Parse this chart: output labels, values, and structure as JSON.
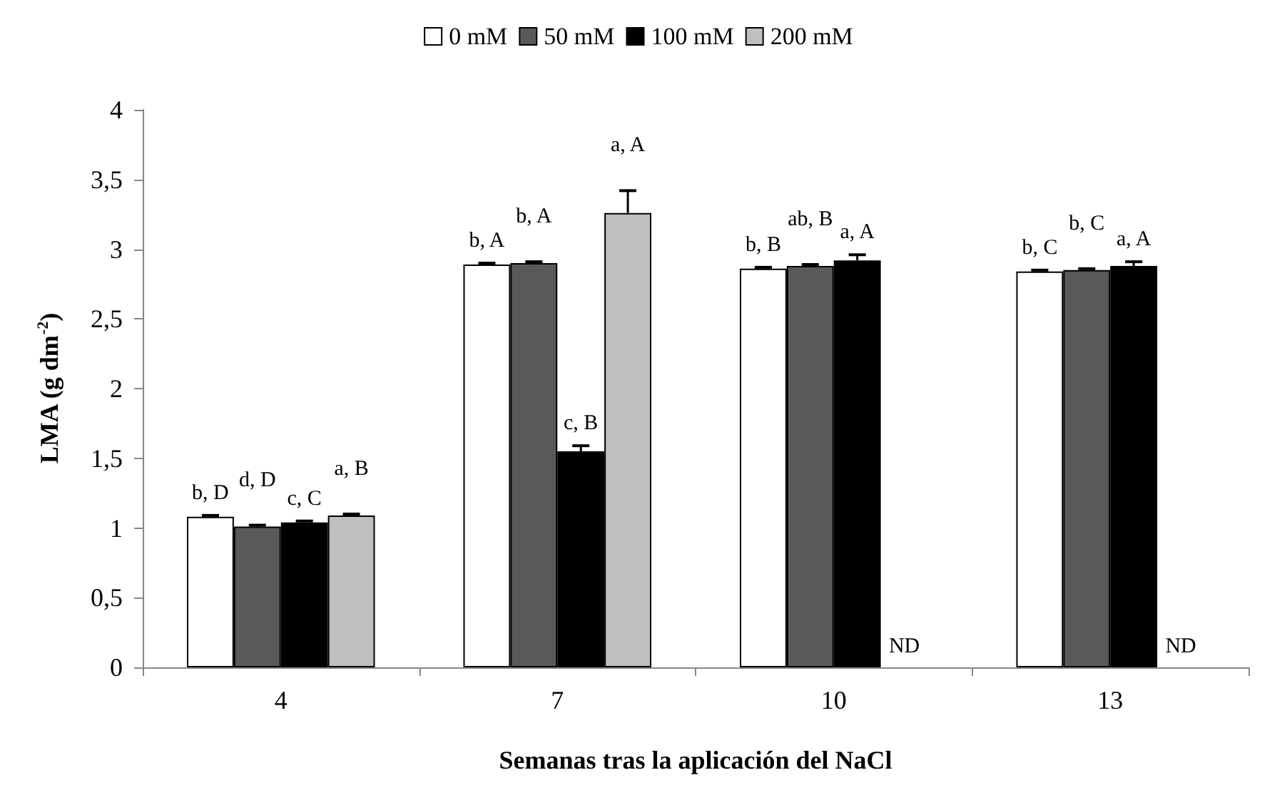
{
  "chart_data": {
    "type": "bar",
    "xlabel": "Semanas tras la aplicación del NaCl",
    "ylabel": "LMA (g dm$^{-2}$)",
    "categories": [
      "4",
      "7",
      "10",
      "13"
    ],
    "series": [
      {
        "name": "0 mM",
        "color": "#ffffff",
        "values": [
          1.08,
          2.89,
          2.86,
          2.84
        ],
        "errors": [
          [
            1.08,
            1.09
          ],
          [
            2.89,
            2.9
          ],
          [
            2.86,
            2.87
          ],
          [
            2.84,
            2.85
          ]
        ],
        "value_labels": [
          "b, D",
          "b, A",
          "b, B",
          "b, C"
        ]
      },
      {
        "name": "50 mM",
        "color": "#595959",
        "values": [
          1.01,
          2.9,
          2.88,
          2.85
        ],
        "errors": [
          [
            1.01,
            1.02
          ],
          [
            2.9,
            2.91
          ],
          [
            2.88,
            2.89
          ],
          [
            2.85,
            2.86
          ]
        ],
        "value_labels": [
          "d, D",
          "b, A",
          "ab, B",
          "b, C"
        ]
      },
      {
        "name": "100 mM",
        "color": "#000000",
        "values": [
          1.04,
          1.55,
          2.92,
          2.88
        ],
        "errors": [
          [
            1.04,
            1.05
          ],
          [
            1.55,
            1.59
          ],
          [
            2.92,
            2.96
          ],
          [
            2.88,
            2.91
          ]
        ],
        "value_labels": [
          "c, C",
          "c, B",
          "a, A",
          "a, A"
        ]
      },
      {
        "name": "200 mM",
        "color": "#bfbfbf",
        "values": [
          1.09,
          3.26,
          null,
          null
        ],
        "errors": [
          [
            1.09,
            1.1
          ],
          [
            3.26,
            3.42
          ],
          null,
          null
        ],
        "value_labels": [
          "a, B",
          "a, A",
          null,
          null
        ]
      }
    ],
    "annotations": [
      {
        "text": "ND",
        "x": "10",
        "y": 0
      },
      {
        "text": "ND",
        "x": "13",
        "y": 0
      }
    ],
    "ylim": [
      0,
      4
    ],
    "yticks": [
      0,
      {
        "value": 0.5,
        "label": "0,5"
      },
      1,
      {
        "value": 1.5,
        "label": "1,5"
      },
      2,
      {
        "value": 2.5,
        "label": "2,5"
      },
      3,
      {
        "value": 3.5,
        "label": "3,5"
      },
      4
    ],
    "grid": false,
    "legend": "top"
  }
}
